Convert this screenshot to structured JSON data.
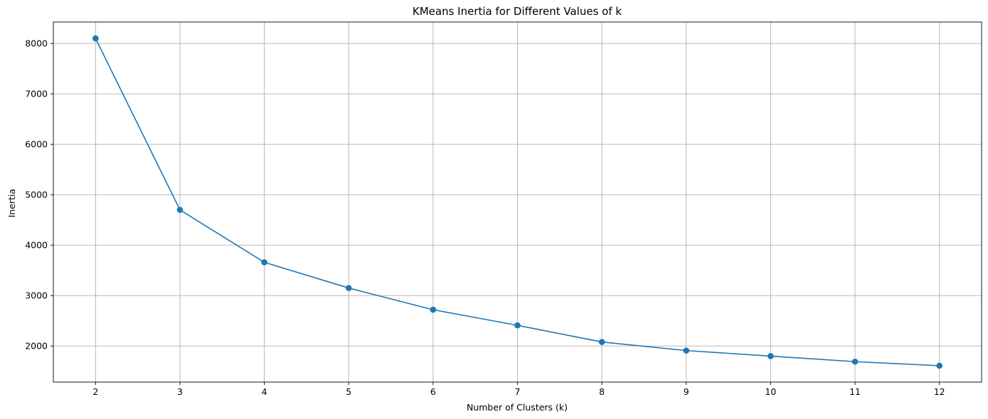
{
  "chart_data": {
    "type": "line",
    "title": "KMeans Inertia for Different Values of k",
    "xlabel": "Number of Clusters (k)",
    "ylabel": "Inertia",
    "x": [
      2,
      3,
      4,
      5,
      6,
      7,
      8,
      9,
      10,
      11,
      12
    ],
    "series": [
      {
        "values": [
          8100,
          4700,
          3660,
          3150,
          2720,
          2410,
          2080,
          1910,
          1800,
          1690,
          1610
        ],
        "color": "#1f77b4",
        "marker": "circle"
      }
    ],
    "xticks": [
      "2",
      "3",
      "4",
      "5",
      "6",
      "7",
      "8",
      "9",
      "10",
      "11",
      "12"
    ],
    "yticks": [
      2000,
      3000,
      4000,
      5000,
      6000,
      7000,
      8000
    ],
    "ytick_labels": [
      "2000",
      "3000",
      "4000",
      "5000",
      "6000",
      "7000",
      "8000"
    ],
    "xlim": [
      1.5,
      12.5
    ],
    "ylim": [
      1285,
      8425
    ],
    "grid": true
  }
}
